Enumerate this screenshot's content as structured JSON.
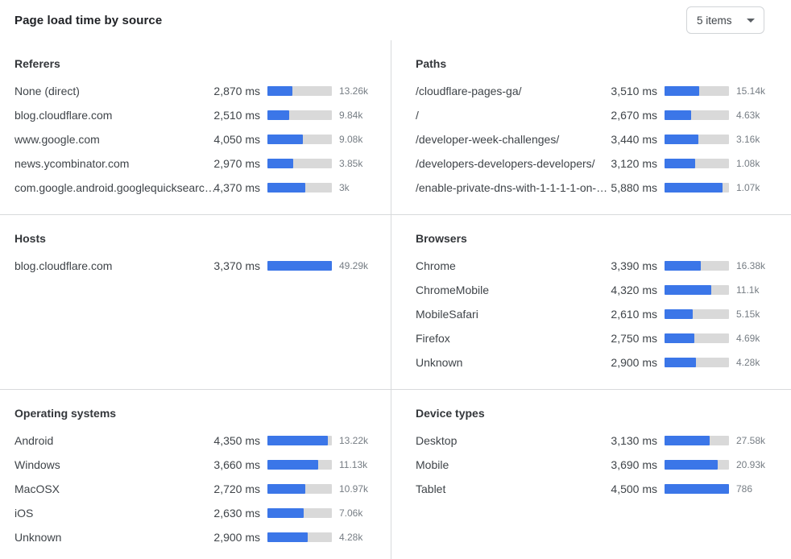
{
  "header": {
    "title": "Page load time by source",
    "dropdown_value": "5 items"
  },
  "colors": {
    "bar_fill": "#3b76e8",
    "bar_track": "#d9d9d9",
    "divider": "#d8dadc"
  },
  "chart_data": [
    {
      "type": "bar",
      "title": "Referers",
      "unit": "ms",
      "rows": [
        {
          "label": "None (direct)",
          "ms": 2870,
          "ms_label": "2,870 ms",
          "count": 13260,
          "count_label": "13.26k",
          "bar_pct": 38.5
        },
        {
          "label": "blog.cloudflare.com",
          "ms": 2510,
          "ms_label": "2,510 ms",
          "count": 9840,
          "count_label": "9.84k",
          "bar_pct": 33.7
        },
        {
          "label": "www.google.com",
          "ms": 4050,
          "ms_label": "4,050 ms",
          "count": 9080,
          "count_label": "9.08k",
          "bar_pct": 54.4
        },
        {
          "label": "news.ycombinator.com",
          "ms": 2970,
          "ms_label": "2,970 ms",
          "count": 3850,
          "count_label": "3.85k",
          "bar_pct": 39.9
        },
        {
          "label": "com.google.android.googlequicksearc…",
          "ms": 4370,
          "ms_label": "4,370 ms",
          "count": 3000,
          "count_label": "3k",
          "bar_pct": 58.7
        }
      ]
    },
    {
      "type": "bar",
      "title": "Paths",
      "unit": "ms",
      "rows": [
        {
          "label": "/cloudflare-pages-ga/",
          "ms": 3510,
          "ms_label": "3,510 ms",
          "count": 15140,
          "count_label": "15.14k",
          "bar_pct": 53.7
        },
        {
          "label": "/",
          "ms": 2670,
          "ms_label": "2,670 ms",
          "count": 4630,
          "count_label": "4.63k",
          "bar_pct": 40.9
        },
        {
          "label": "/developer-week-challenges/",
          "ms": 3440,
          "ms_label": "3,440 ms",
          "count": 3160,
          "count_label": "3.16k",
          "bar_pct": 52.7
        },
        {
          "label": "/developers-developers-developers/",
          "ms": 3120,
          "ms_label": "3,120 ms",
          "count": 1080,
          "count_label": "1.08k",
          "bar_pct": 47.8
        },
        {
          "label": "/enable-private-dns-with-1-1-1-1-on-…",
          "ms": 5880,
          "ms_label": "5,880 ms",
          "count": 1070,
          "count_label": "1.07k",
          "bar_pct": 90.0
        }
      ]
    },
    {
      "type": "bar",
      "title": "Hosts",
      "unit": "ms",
      "rows": [
        {
          "label": "blog.cloudflare.com",
          "ms": 3370,
          "ms_label": "3,370 ms",
          "count": 49290,
          "count_label": "49.29k",
          "bar_pct": 100
        }
      ]
    },
    {
      "type": "bar",
      "title": "Browsers",
      "unit": "ms",
      "rows": [
        {
          "label": "Chrome",
          "ms": 3390,
          "ms_label": "3,390 ms",
          "count": 16380,
          "count_label": "16.38k",
          "bar_pct": 56.5
        },
        {
          "label": "ChromeMobile",
          "ms": 4320,
          "ms_label": "4,320 ms",
          "count": 11100,
          "count_label": "11.1k",
          "bar_pct": 72.0
        },
        {
          "label": "MobileSafari",
          "ms": 2610,
          "ms_label": "2,610 ms",
          "count": 5150,
          "count_label": "5.15k",
          "bar_pct": 43.5
        },
        {
          "label": "Firefox",
          "ms": 2750,
          "ms_label": "2,750 ms",
          "count": 4690,
          "count_label": "4.69k",
          "bar_pct": 45.8
        },
        {
          "label": "Unknown",
          "ms": 2900,
          "ms_label": "2,900 ms",
          "count": 4280,
          "count_label": "4.28k",
          "bar_pct": 48.3
        }
      ]
    },
    {
      "type": "bar",
      "title": "Operating systems",
      "unit": "ms",
      "rows": [
        {
          "label": "Android",
          "ms": 4350,
          "ms_label": "4,350 ms",
          "count": 13220,
          "count_label": "13.22k",
          "bar_pct": 94.0
        },
        {
          "label": "Windows",
          "ms": 3660,
          "ms_label": "3,660 ms",
          "count": 11130,
          "count_label": "11.13k",
          "bar_pct": 79.1
        },
        {
          "label": "MacOSX",
          "ms": 2720,
          "ms_label": "2,720 ms",
          "count": 10970,
          "count_label": "10.97k",
          "bar_pct": 58.8
        },
        {
          "label": "iOS",
          "ms": 2630,
          "ms_label": "2,630 ms",
          "count": 7060,
          "count_label": "7.06k",
          "bar_pct": 56.8
        },
        {
          "label": "Unknown",
          "ms": 2900,
          "ms_label": "2,900 ms",
          "count": 4280,
          "count_label": "4.28k",
          "bar_pct": 62.6
        }
      ]
    },
    {
      "type": "bar",
      "title": "Device types",
      "unit": "ms",
      "rows": [
        {
          "label": "Desktop",
          "ms": 3130,
          "ms_label": "3,130 ms",
          "count": 27580,
          "count_label": "27.58k",
          "bar_pct": 69.6
        },
        {
          "label": "Mobile",
          "ms": 3690,
          "ms_label": "3,690 ms",
          "count": 20930,
          "count_label": "20.93k",
          "bar_pct": 82.0
        },
        {
          "label": "Tablet",
          "ms": 4500,
          "ms_label": "4,500 ms",
          "count": 786,
          "count_label": "786",
          "bar_pct": 100
        }
      ]
    }
  ]
}
